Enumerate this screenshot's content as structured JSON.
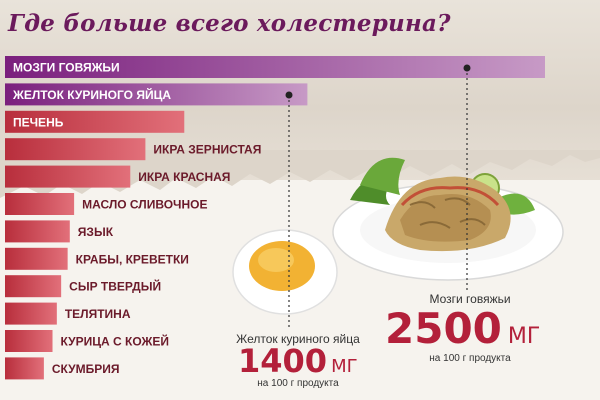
{
  "title": "Где больше всего холестерина?",
  "chart_data": {
    "type": "bar",
    "orientation": "horizontal",
    "title": "Где больше всего холестерина?",
    "xlabel": "",
    "ylabel": "",
    "xlim": [
      0,
      2500
    ],
    "grid": false,
    "categories": [
      "Мозги говяжьи",
      "Желток куриного яйца",
      "Печень",
      "Икра зернистая",
      "Икра красная",
      "Масло сливочное",
      "Язык",
      "Крабы, креветки",
      "Сыр твердый",
      "Телятина",
      "Курица с кожей",
      "Скумбрия"
    ],
    "values": [
      2500,
      1400,
      830,
      650,
      580,
      320,
      300,
      290,
      260,
      240,
      220,
      180
    ]
  },
  "colors": {
    "purple": "#7a1f7d",
    "purple_light": "#c79ac6",
    "red": "#b82e3c",
    "red_light": "#e2707a",
    "value_red": "#b3203a",
    "title_purple": "#6b1a5c"
  },
  "callouts": {
    "yolk": {
      "caption": "Желток куриного яйца",
      "value": "1400",
      "unit": "МГ",
      "sub": "на 100 г продукта"
    },
    "brain": {
      "caption": "Мозги говяжьи",
      "value": "2500",
      "unit": "МГ",
      "sub": "на 100 г продукта"
    }
  }
}
